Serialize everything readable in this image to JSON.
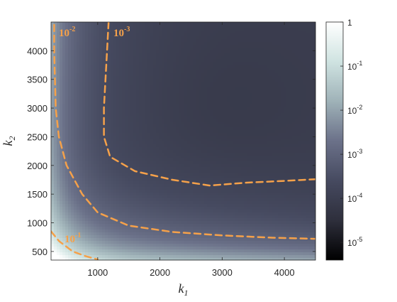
{
  "chart_data": {
    "type": "heatmap",
    "x_axis": {
      "label_base": "k",
      "label_sub": "1",
      "range": [
        250,
        4500
      ],
      "ticks": [
        1000,
        2000,
        3000,
        4000
      ],
      "tick_labels": [
        "1000",
        "2000",
        "3000",
        "4000"
      ]
    },
    "y_axis": {
      "label_base": "k",
      "label_sub": "2",
      "range": [
        350,
        4500
      ],
      "ticks": [
        500,
        1000,
        1500,
        2000,
        2500,
        3000,
        3500,
        4000
      ],
      "tick_labels": [
        "500",
        "1000",
        "1500",
        "2000",
        "2500",
        "3000",
        "3500",
        "4000"
      ]
    },
    "colorbar": {
      "scale": "log",
      "range_exponents": [
        -5.4,
        0
      ],
      "ticks": [
        {
          "exp": 0,
          "base": "1",
          "sup": ""
        },
        {
          "exp": -1,
          "base": "10",
          "sup": "-1"
        },
        {
          "exp": -2,
          "base": "10",
          "sup": "-2"
        },
        {
          "exp": -3,
          "base": "10",
          "sup": "-3"
        },
        {
          "exp": -4,
          "base": "10",
          "sup": "-4"
        },
        {
          "exp": -5,
          "base": "10",
          "sup": "-5"
        }
      ],
      "colors": [
        "#000000",
        "#2e2f3c",
        "#464a60",
        "#6b7189",
        "#9fb2b8",
        "#cfe3e1",
        "#ffffff"
      ]
    },
    "contours": [
      {
        "level_base": "10",
        "level_sup": "-3",
        "style": "dashed",
        "color": "#f5a14a",
        "points": [
          [
            1175,
            4500
          ],
          [
            1150,
            4000
          ],
          [
            1125,
            3500
          ],
          [
            1100,
            3000
          ],
          [
            1100,
            2500
          ],
          [
            1200,
            2150
          ],
          [
            1600,
            1900
          ],
          [
            2200,
            1750
          ],
          [
            2800,
            1650
          ],
          [
            3400,
            1700
          ],
          [
            4000,
            1730
          ],
          [
            4500,
            1760
          ]
        ]
      },
      {
        "level_base": "10",
        "level_sup": "-2",
        "style": "dashed",
        "color": "#f5a14a",
        "points": [
          [
            300,
            4450
          ],
          [
            300,
            4000
          ],
          [
            325,
            3000
          ],
          [
            375,
            2500
          ],
          [
            500,
            2000
          ],
          [
            750,
            1500
          ],
          [
            1000,
            1180
          ],
          [
            1500,
            950
          ],
          [
            2200,
            840
          ],
          [
            3000,
            780
          ],
          [
            3800,
            740
          ],
          [
            4500,
            720
          ]
        ]
      },
      {
        "level_base": "10",
        "level_sup": "-1",
        "style": "dashed",
        "color": "#f5a14a",
        "points": [
          [
            250,
            850
          ],
          [
            380,
            680
          ],
          [
            600,
            500
          ],
          [
            800,
            420
          ],
          [
            1000,
            360
          ]
        ]
      }
    ]
  }
}
